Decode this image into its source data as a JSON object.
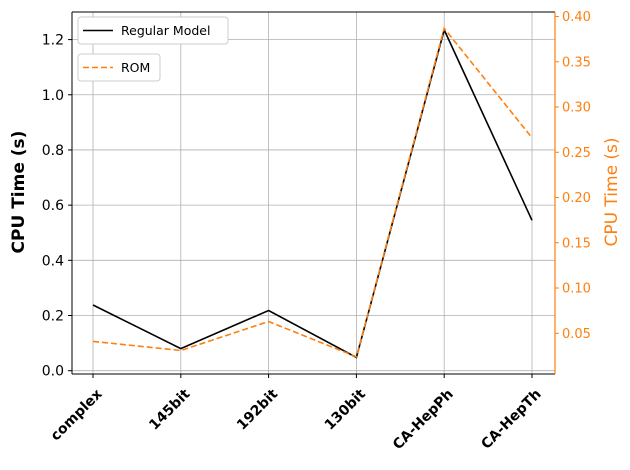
{
  "chart_data": {
    "type": "line",
    "categories": [
      "complex",
      "145bit",
      "192bit",
      "130bit",
      "CA-HepPh",
      "CA-HepTh"
    ],
    "series": [
      {
        "name": "Regular Model",
        "axis": "left",
        "style": "solid",
        "color": "#000000",
        "values": [
          0.238,
          0.08,
          0.218,
          0.048,
          1.235,
          0.545
        ]
      },
      {
        "name": "ROM",
        "axis": "right",
        "style": "dashed",
        "color": "#ff7f0e",
        "values": [
          0.041,
          0.031,
          0.063,
          0.024,
          0.387,
          0.266
        ]
      }
    ],
    "ylabel": "CPU Time (s)",
    "ylabel_right": "CPU Time (s)",
    "ylim": [
      -0.012,
      1.3
    ],
    "ylim_right": [
      0.005,
      0.405
    ],
    "yticks": [
      "0.0",
      "0.2",
      "0.4",
      "0.6",
      "0.8",
      "1.0",
      "1.2"
    ],
    "yticks_right": [
      "0.05",
      "0.10",
      "0.15",
      "0.20",
      "0.25",
      "0.30",
      "0.35",
      "0.40"
    ],
    "grid": true,
    "legend_position": "top-left",
    "accent_color": "#ff7f0e"
  }
}
